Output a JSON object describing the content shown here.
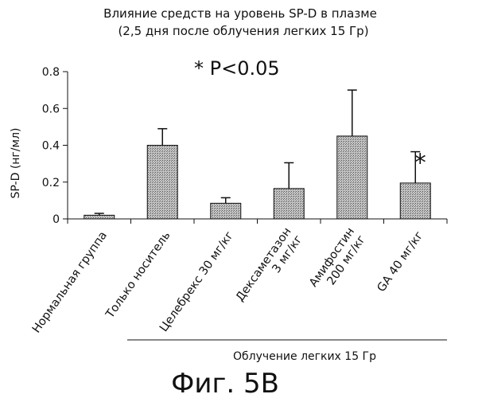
{
  "chart_data": {
    "type": "bar",
    "title_lines": [
      "Влияние средств на уровень SP-D в плазме",
      "(2,5 дня после облучения легких 15 Гр)"
    ],
    "ylabel": "SP-D (нг/мл)",
    "xlabel": "",
    "ylim": [
      0,
      0.8
    ],
    "yticks": [
      "0",
      "0.2",
      "0.4",
      "0.6",
      "0.8"
    ],
    "categories": [
      [
        "Нормальная группа"
      ],
      [
        "Только носитель"
      ],
      [
        "Целебрекс 30 мг/кг"
      ],
      [
        "Дексаметазон",
        "3 мг/кг"
      ],
      [
        "Амифостин",
        "200 мг/кг"
      ],
      [
        "GA 40 мг/кг"
      ]
    ],
    "values": [
      0.02,
      0.4,
      0.085,
      0.165,
      0.45,
      0.195
    ],
    "error_upper": [
      0.03,
      0.49,
      0.115,
      0.305,
      0.7,
      0.365
    ],
    "significant": [
      false,
      false,
      false,
      false,
      false,
      true
    ],
    "significance_marker": "*",
    "p_note": "* P<0.05",
    "group_label": "Облучение легких 15 Гр",
    "bar_fill": "#b9b9b9",
    "bar_stroke": "#111111"
  },
  "figure_label": "Фиг. 5B"
}
